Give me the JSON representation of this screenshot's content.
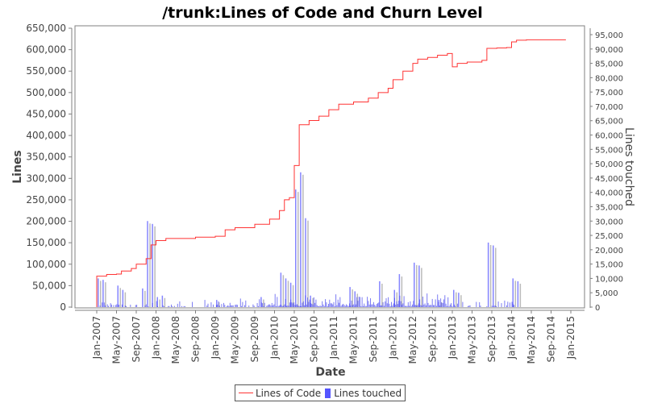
{
  "chart_data": {
    "type": "line+bar",
    "title": "/trunk:Lines of Code and Churn Level",
    "xlabel": "Date",
    "ylabel": "Lines",
    "y2label": "Lines touched",
    "ylim": [
      0,
      650000
    ],
    "y2lim": [
      0,
      97000
    ],
    "y_ticks": [
      "0",
      "50,000",
      "100,000",
      "150,000",
      "200,000",
      "250,000",
      "300,000",
      "350,000",
      "400,000",
      "450,000",
      "500,000",
      "550,000",
      "600,000",
      "650,000"
    ],
    "y2_ticks": [
      "0",
      "5,000",
      "10,000",
      "15,000",
      "20,000",
      "25,000",
      "30,000",
      "35,000",
      "40,000",
      "45,000",
      "50,000",
      "55,000",
      "60,000",
      "65,000",
      "70,000",
      "75,000",
      "80,000",
      "85,000",
      "90,000",
      "95,000"
    ],
    "x_ticks": [
      "Jan-2007",
      "May-2007",
      "Sep-2007",
      "Jan-2008",
      "May-2008",
      "Sep-2008",
      "Jan-2009",
      "May-2009",
      "Sep-2009",
      "Jan-2010",
      "May-2010",
      "Sep-2010",
      "Jan-2011",
      "May-2011",
      "Sep-2011",
      "Jan-2012",
      "May-2012",
      "Sep-2012",
      "Jan-2013",
      "May-2013",
      "Sep-2013",
      "Jan-2014",
      "May-2014",
      "Sep-2014",
      "Jan-2015"
    ],
    "grid": false,
    "legend_position": "bottom",
    "series": [
      {
        "name": "Lines of Code",
        "type": "step-line",
        "color": "#ff3333",
        "axis": "left",
        "points": [
          [
            "2007-01",
            0
          ],
          [
            "2007-01",
            72000
          ],
          [
            "2007-03",
            76000
          ],
          [
            "2007-05",
            77000
          ],
          [
            "2007-06",
            84000
          ],
          [
            "2007-08",
            90000
          ],
          [
            "2007-09",
            100000
          ],
          [
            "2007-11",
            113000
          ],
          [
            "2007-12",
            145000
          ],
          [
            "2008-01",
            155000
          ],
          [
            "2008-03",
            160000
          ],
          [
            "2008-08",
            160000
          ],
          [
            "2008-09",
            163000
          ],
          [
            "2009-01",
            165000
          ],
          [
            "2009-03",
            180000
          ],
          [
            "2009-05",
            185000
          ],
          [
            "2009-09",
            193000
          ],
          [
            "2009-12",
            205000
          ],
          [
            "2010-02",
            225000
          ],
          [
            "2010-03",
            250000
          ],
          [
            "2010-04",
            255000
          ],
          [
            "2010-05",
            330000
          ],
          [
            "2010-06",
            390000
          ],
          [
            "2010-06",
            425000
          ],
          [
            "2010-08",
            435000
          ],
          [
            "2010-10",
            445000
          ],
          [
            "2010-12",
            460000
          ],
          [
            "2011-02",
            473000
          ],
          [
            "2011-05",
            478000
          ],
          [
            "2011-08",
            487000
          ],
          [
            "2011-10",
            500000
          ],
          [
            "2011-12",
            510000
          ],
          [
            "2012-01",
            530000
          ],
          [
            "2012-03",
            550000
          ],
          [
            "2012-05",
            568000
          ],
          [
            "2012-06",
            578000
          ],
          [
            "2012-08",
            582000
          ],
          [
            "2012-10",
            587000
          ],
          [
            "2012-12",
            591000
          ],
          [
            "2013-01",
            560000
          ],
          [
            "2013-02",
            568000
          ],
          [
            "2013-04",
            571000
          ],
          [
            "2013-07",
            575000
          ],
          [
            "2013-08",
            603000
          ],
          [
            "2013-10",
            604000
          ],
          [
            "2013-12",
            605000
          ],
          [
            "2014-01",
            618000
          ],
          [
            "2014-02",
            622000
          ],
          [
            "2014-04",
            623000
          ],
          [
            "2014-12",
            623000
          ]
        ]
      },
      {
        "name": "Lines touched",
        "type": "bar",
        "color": "#5555ff",
        "axis": "right",
        "points": [
          [
            "2007-01",
            10000
          ],
          [
            "2007-02",
            9500
          ],
          [
            "2007-05",
            7500
          ],
          [
            "2007-06",
            6000
          ],
          [
            "2007-10",
            6500
          ],
          [
            "2007-11",
            30000
          ],
          [
            "2007-12",
            29000
          ],
          [
            "2008-01",
            3500
          ],
          [
            "2008-02",
            4000
          ],
          [
            "2009-01",
            2500
          ],
          [
            "2009-10",
            3500
          ],
          [
            "2010-02",
            12000
          ],
          [
            "2010-03",
            10000
          ],
          [
            "2010-04",
            8500
          ],
          [
            "2010-05",
            41000
          ],
          [
            "2010-06",
            47000
          ],
          [
            "2010-07",
            31000
          ],
          [
            "2010-08",
            4000
          ],
          [
            "2011-04",
            7000
          ],
          [
            "2011-05",
            5500
          ],
          [
            "2011-10",
            9000
          ],
          [
            "2012-01",
            6000
          ],
          [
            "2012-02",
            11500
          ],
          [
            "2012-05",
            15500
          ],
          [
            "2012-06",
            14500
          ],
          [
            "2012-10",
            2500
          ],
          [
            "2013-01",
            6000
          ],
          [
            "2013-02",
            5000
          ],
          [
            "2013-08",
            22500
          ],
          [
            "2013-09",
            21500
          ],
          [
            "2014-01",
            10000
          ],
          [
            "2014-02",
            9000
          ]
        ]
      }
    ]
  },
  "legend": {
    "items": [
      {
        "label": "Lines of Code",
        "color": "#ff3333",
        "shape": "line"
      },
      {
        "label": "Lines touched",
        "color": "#5555ff",
        "shape": "bar"
      }
    ]
  }
}
